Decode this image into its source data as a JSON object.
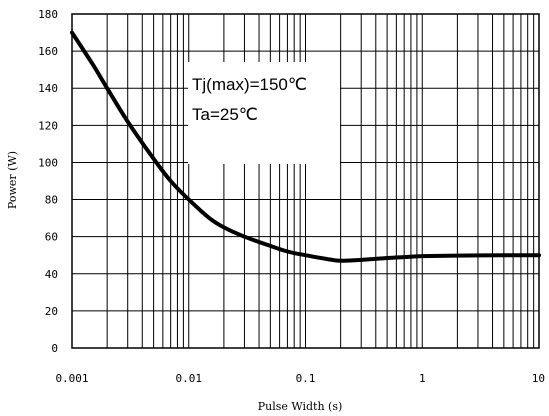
{
  "chart_data": {
    "type": "line",
    "title": "",
    "xlabel": "Pulse Width (s)",
    "ylabel": "Power (W)",
    "x_scale": "log",
    "xlim": [
      0.001,
      10
    ],
    "ylim": [
      0,
      180
    ],
    "grid": true,
    "x_ticks": [
      0.001,
      0.01,
      0.1,
      1,
      10
    ],
    "x_tick_labels": [
      "0.001",
      "0.01",
      "0.1",
      "1",
      "10"
    ],
    "y_ticks": [
      0,
      20,
      40,
      60,
      80,
      100,
      120,
      140,
      160,
      180
    ],
    "y_tick_labels": [
      "0",
      "20",
      "40",
      "60",
      "80",
      "100",
      "120",
      "140",
      "160",
      "180"
    ],
    "series": [
      {
        "x": [
          0.001,
          0.0015,
          0.002,
          0.003,
          0.005,
          0.007,
          0.01,
          0.015,
          0.02,
          0.03,
          0.05,
          0.07,
          0.1,
          0.15,
          0.2,
          0.3,
          0.5,
          0.7,
          1,
          2,
          5,
          10
        ],
        "y": [
          170,
          153,
          140,
          122,
          102,
          90,
          80,
          70,
          65,
          60,
          55,
          52,
          50,
          48,
          47,
          47.5,
          48.5,
          49,
          49.5,
          49.8,
          50,
          50
        ]
      }
    ],
    "annotations": [
      "Tj(max)=150℃",
      "Ta=25℃"
    ]
  },
  "styles": {
    "line_color": "#000000",
    "grid_color": "#000000",
    "annotation_bg": "#ffffff"
  }
}
